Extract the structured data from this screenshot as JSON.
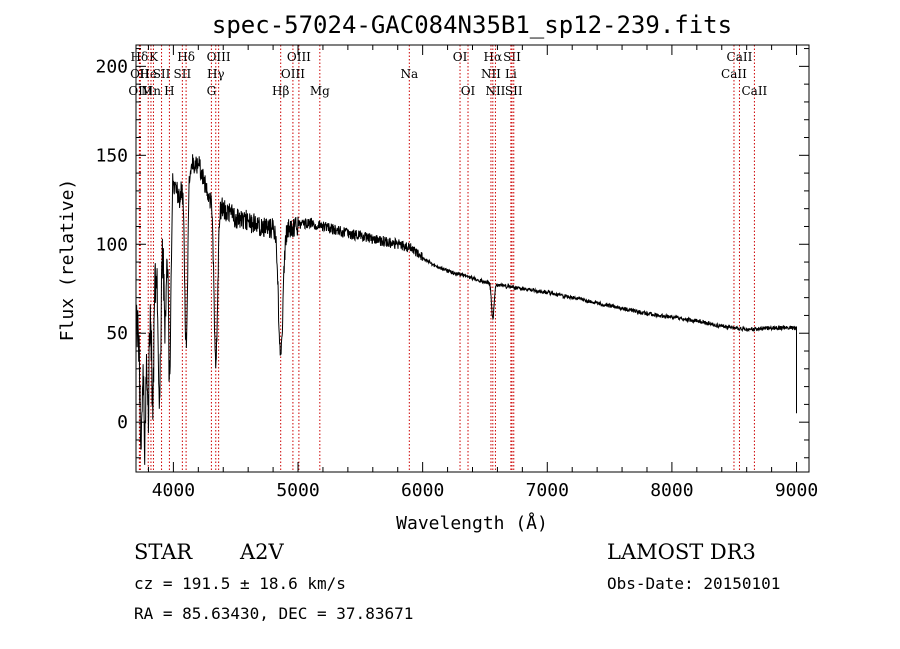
{
  "chart_data": {
    "type": "line",
    "title": "spec-57024-GAC084N35B1_sp12-239.fits",
    "xlabel": "Wavelength (Å)",
    "ylabel": "Flux (relative)",
    "xlim": [
      3700,
      9100
    ],
    "ylim": [
      -28,
      212
    ],
    "xticks": [
      4000,
      5000,
      6000,
      7000,
      8000,
      9000
    ],
    "xticklabels": [
      "4000",
      "5000",
      "6000",
      "7000",
      "8000",
      "9000"
    ],
    "yticks": [
      0,
      50,
      100,
      150,
      200
    ],
    "yticklabels": [
      "0",
      "50",
      "100",
      "150",
      "200"
    ],
    "line_color": "#000000",
    "marker_color": "#cc0000",
    "spectral_lines": [
      {
        "label": "Hδ",
        "wavelength": 3727,
        "row": 1
      },
      {
        "label": "OII",
        "wavelength": 3730,
        "row": 2
      },
      {
        "label": "OIII",
        "wavelength": 3735,
        "row": 3
      },
      {
        "label": "He",
        "wavelength": 3798,
        "row": 2
      },
      {
        "label": "K",
        "wavelength": 3840,
        "row": 1
      },
      {
        "label": "Mn",
        "wavelength": 3820,
        "row": 3
      },
      {
        "label": "SII",
        "wavelength": 3905,
        "row": 2
      },
      {
        "label": "H",
        "wavelength": 3968,
        "row": 3
      },
      {
        "label": "Hδ",
        "wavelength": 4102,
        "row": 1
      },
      {
        "label": "SII",
        "wavelength": 4072,
        "row": 2
      },
      {
        "label": "OIII",
        "wavelength": 4363,
        "row": 1
      },
      {
        "label": "Hγ",
        "wavelength": 4340,
        "row": 2
      },
      {
        "label": "G",
        "wavelength": 4305,
        "row": 3
      },
      {
        "label": "Hβ",
        "wavelength": 4861,
        "row": 3
      },
      {
        "label": "OIII",
        "wavelength": 5007,
        "row": 1
      },
      {
        "label": "OIII",
        "wavelength": 4959,
        "row": 2
      },
      {
        "label": "Mg",
        "wavelength": 5175,
        "row": 3
      },
      {
        "label": "Na",
        "wavelength": 5893,
        "row": 2
      },
      {
        "label": "OI",
        "wavelength": 6300,
        "row": 1
      },
      {
        "label": "OI",
        "wavelength": 6364,
        "row": 3
      },
      {
        "label": "Hα",
        "wavelength": 6563,
        "row": 1
      },
      {
        "label": "NII",
        "wavelength": 6548,
        "row": 2
      },
      {
        "label": "NII",
        "wavelength": 6584,
        "row": 3
      },
      {
        "label": "SII",
        "wavelength": 6717,
        "row": 1
      },
      {
        "label": "Li",
        "wavelength": 6708,
        "row": 2
      },
      {
        "label": "SII",
        "wavelength": 6731,
        "row": 3
      },
      {
        "label": "CaII",
        "wavelength": 8542,
        "row": 1
      },
      {
        "label": "CaII",
        "wavelength": 8498,
        "row": 2
      },
      {
        "label": "CaII",
        "wavelength": 8662,
        "row": 3
      }
    ],
    "continuum": [
      [
        3700,
        60
      ],
      [
        3750,
        30
      ],
      [
        3800,
        55
      ],
      [
        3850,
        80
      ],
      [
        3900,
        95
      ],
      [
        3950,
        110
      ],
      [
        4000,
        135
      ],
      [
        4050,
        125
      ],
      [
        4100,
        145
      ],
      [
        4200,
        145
      ],
      [
        4300,
        125
      ],
      [
        4400,
        120
      ],
      [
        4500,
        115
      ],
      [
        4600,
        113
      ],
      [
        4700,
        110
      ],
      [
        4800,
        109
      ],
      [
        4900,
        108
      ],
      [
        5000,
        111
      ],
      [
        5100,
        112
      ],
      [
        5200,
        110
      ],
      [
        5400,
        106
      ],
      [
        5600,
        103
      ],
      [
        5800,
        100
      ],
      [
        5900,
        98
      ],
      [
        6000,
        92
      ],
      [
        6100,
        88
      ],
      [
        6200,
        85
      ],
      [
        6300,
        83
      ],
      [
        6400,
        81
      ],
      [
        6500,
        79
      ],
      [
        6600,
        77
      ],
      [
        6700,
        76
      ],
      [
        6800,
        75
      ],
      [
        7000,
        73
      ],
      [
        7200,
        70
      ],
      [
        7400,
        67
      ],
      [
        7600,
        64
      ],
      [
        7800,
        61
      ],
      [
        8000,
        59
      ],
      [
        8200,
        57
      ],
      [
        8400,
        54
      ],
      [
        8600,
        52
      ],
      [
        8800,
        53
      ],
      [
        9000,
        53
      ]
    ],
    "absorption_features": [
      {
        "center": 3740,
        "width": 8,
        "depth": 55
      },
      {
        "center": 3771,
        "width": 6,
        "depth": 55
      },
      {
        "center": 3798,
        "width": 7,
        "depth": 50
      },
      {
        "center": 3835,
        "width": 8,
        "depth": 65
      },
      {
        "center": 3889,
        "width": 10,
        "depth": 80
      },
      {
        "center": 3933,
        "width": 8,
        "depth": 55
      },
      {
        "center": 3970,
        "width": 10,
        "depth": 95
      },
      {
        "center": 4102,
        "width": 12,
        "depth": 100
      },
      {
        "center": 4340,
        "width": 14,
        "depth": 90
      },
      {
        "center": 4861,
        "width": 18,
        "depth": 70
      },
      {
        "center": 6563,
        "width": 10,
        "depth": 20
      }
    ]
  },
  "info": {
    "object_type": "STAR",
    "subclass": "A2V",
    "survey": "LAMOST DR3",
    "cz": "cz = 191.5 ± 18.6 km/s",
    "obs_date": "Obs-Date: 20150101",
    "coords": "RA =  85.63430, DEC =  37.83671"
  }
}
